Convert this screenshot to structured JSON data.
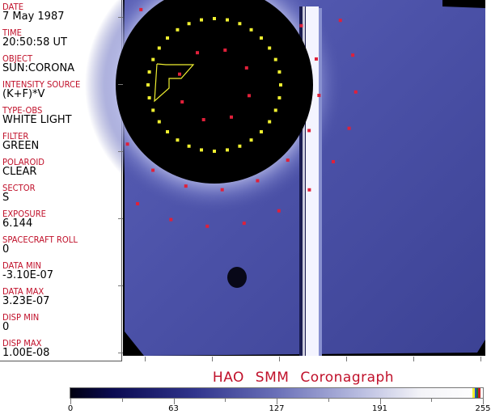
{
  "fields": [
    {
      "label": "DATE",
      "value": "7 May 1987"
    },
    {
      "label": "TIME",
      "value": "20:50:58 UT"
    },
    {
      "label": "OBJECT",
      "value": "SUN:CORONA"
    },
    {
      "label": "INTENSITY SOURCE",
      "value": "(K+F)*V"
    },
    {
      "label": "TYPE-OBS",
      "value": "WHITE LIGHT"
    },
    {
      "label": "FILTER",
      "value": "GREEN"
    },
    {
      "label": "POLAROID",
      "value": "CLEAR"
    },
    {
      "label": "SECTOR",
      "value": "S"
    },
    {
      "label": "EXPOSURE",
      "value": "6.144"
    },
    {
      "label": "SPACECRAFT ROLL",
      "value": "0"
    },
    {
      "label": "DATA MIN",
      "value": "-3.10E-07"
    },
    {
      "label": "DATA MAX",
      "value": "3.23E-07"
    },
    {
      "label": "DISP MIN",
      "value": "0"
    },
    {
      "label": "DISP MAX",
      "value": "1.00E-08"
    }
  ],
  "title": "HAO  SMM  Coronagraph",
  "colorbar": {
    "min": 0,
    "max": 255,
    "tick_labels": [
      "0",
      "63",
      "127",
      "191",
      "255"
    ]
  },
  "colors": {
    "label": "#c0102a",
    "marker_red": "#e0203a",
    "marker_yellow": "#f0f030",
    "corona": "#4a50a8"
  }
}
